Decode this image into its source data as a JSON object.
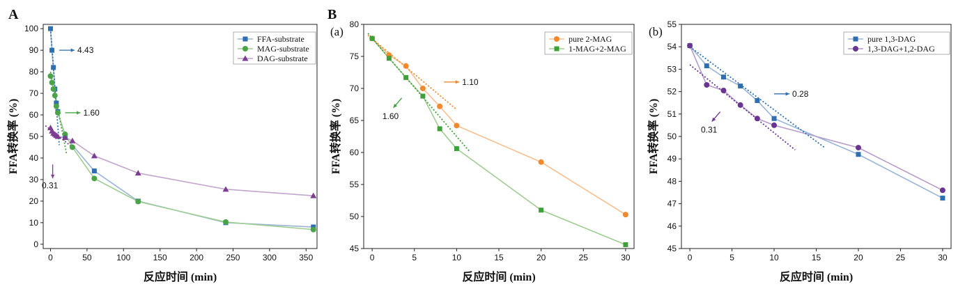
{
  "chart_data": [
    {
      "panel": "A",
      "type": "line",
      "ylabel": "FFA转换率 (%)",
      "xlabel": "反应时间 (min)",
      "xlim": [
        -10,
        365
      ],
      "ylim": [
        -2,
        102
      ],
      "xticks": [
        0,
        50,
        100,
        150,
        200,
        250,
        300,
        350
      ],
      "yticks": [
        0,
        10,
        20,
        30,
        40,
        50,
        60,
        70,
        80,
        90,
        100
      ],
      "legend_position": "top-right",
      "series": [
        {
          "name": "FFA-substrate",
          "color": "#2f6fb0",
          "line_color": "#9ab4d6",
          "marker": "square",
          "x": [
            0,
            2,
            4,
            6,
            8,
            10,
            20,
            60,
            120,
            240,
            360
          ],
          "y": [
            100,
            90,
            82,
            72,
            65.5,
            61.5,
            50,
            34,
            20,
            10,
            8
          ]
        },
        {
          "name": "MAG-substrate",
          "color": "#4aa447",
          "line_color": "#9fcd93",
          "marker": "circle",
          "x": [
            0,
            2,
            4,
            6,
            8,
            10,
            20,
            30,
            60,
            120,
            240,
            360
          ],
          "y": [
            78,
            75,
            72,
            69,
            64,
            61,
            51,
            45,
            30.5,
            19.8,
            10.3,
            6.8
          ]
        },
        {
          "name": "DAG-substrate",
          "color": "#7b3e91",
          "line_color": "#c2a4cc",
          "marker": "triangle",
          "x": [
            0,
            2,
            4,
            6,
            8,
            10,
            20,
            30,
            60,
            120,
            240,
            360
          ],
          "y": [
            54,
            52.5,
            51.5,
            51,
            50.5,
            50,
            49.5,
            48,
            41,
            33,
            25.5,
            22.5
          ]
        }
      ],
      "fit_lines": [
        {
          "color": "#2f6fb0",
          "x": [
            0,
            12
          ],
          "y": [
            100,
            46
          ]
        },
        {
          "color": "#4aa447",
          "x": [
            0,
            22
          ],
          "y": [
            80,
            42
          ]
        },
        {
          "color": "#7b3e91",
          "x": [
            -7,
            30
          ],
          "y": [
            55,
            45
          ]
        }
      ],
      "annotations": [
        {
          "text": "4.43",
          "color": "#2f6fb0",
          "x": 12,
          "y": 90,
          "dir": "right"
        },
        {
          "text": "1.60",
          "color": "#4aa447",
          "x": 20,
          "y": 61,
          "dir": "right"
        },
        {
          "text": "0.31",
          "color": "#7b3e91",
          "x": 3,
          "y": 37,
          "dir": "down"
        }
      ]
    },
    {
      "panel": "B",
      "subpanel": "(a)",
      "type": "line",
      "ylabel": "FFA转换率 (%)",
      "xlabel": "反应时间 (min)",
      "xlim": [
        -1,
        31
      ],
      "ylim": [
        45,
        80
      ],
      "xticks": [
        0,
        5,
        10,
        15,
        20,
        25,
        30
      ],
      "yticks": [
        45,
        50,
        55,
        60,
        65,
        70,
        75,
        80
      ],
      "legend_position": "top-right",
      "series": [
        {
          "name": "pure 2-MAG",
          "color": "#f08a2c",
          "line_color": "#f6bf8f",
          "marker": "circle",
          "x": [
            0,
            2,
            4,
            6,
            8,
            10,
            20,
            30
          ],
          "y": [
            77.8,
            75.2,
            73.5,
            70,
            67.2,
            64.2,
            58.5,
            50.3
          ]
        },
        {
          "name": "1-MAG+2-MAG",
          "color": "#3fa03a",
          "line_color": "#9fcd93",
          "marker": "square",
          "x": [
            0,
            2,
            4,
            6,
            8,
            10,
            20,
            30
          ],
          "y": [
            77.8,
            74.7,
            71.7,
            68.8,
            63.7,
            60.6,
            51,
            45.6
          ]
        }
      ],
      "fit_lines": [
        {
          "color": "#f08a2c",
          "x": [
            -0.5,
            10
          ],
          "y": [
            78.3,
            66.7
          ]
        },
        {
          "color": "#3fa03a",
          "x": [
            -0.5,
            11.5
          ],
          "y": [
            78.6,
            60.2
          ]
        }
      ],
      "annotations": [
        {
          "text": "1.10",
          "color": "#f08a2c",
          "x": 8.5,
          "y": 71,
          "dir": "right"
        },
        {
          "text": "1.60",
          "color": "#3fa03a",
          "x": 3.5,
          "y": 68.5,
          "dir": "down-left"
        }
      ]
    },
    {
      "panel": "",
      "subpanel": "(b)",
      "type": "line",
      "ylabel": "FFA转换率 (%)",
      "xlabel": "反应时间 (min)",
      "xlim": [
        -1,
        31
      ],
      "ylim": [
        45,
        55
      ],
      "xticks": [
        0,
        5,
        10,
        15,
        20,
        25,
        30
      ],
      "yticks": [
        45,
        46,
        47,
        48,
        49,
        50,
        51,
        52,
        53,
        54,
        55
      ],
      "legend_position": "top-right",
      "series": [
        {
          "name": "pure 1,3-DAG",
          "color": "#2f6fb0",
          "line_color": "#9ab4d6",
          "marker": "square",
          "x": [
            0,
            2,
            4,
            6,
            8,
            10,
            20,
            30
          ],
          "y": [
            54.05,
            53.15,
            52.65,
            52.25,
            51.6,
            50.8,
            49.2,
            47.25
          ]
        },
        {
          "name": "1,3-DAG+1,2-DAG",
          "color": "#6a3590",
          "line_color": "#b69ccb",
          "marker": "circle",
          "x": [
            0,
            2,
            4,
            6,
            8,
            10,
            20,
            30
          ],
          "y": [
            54.05,
            52.3,
            52.05,
            51.4,
            50.8,
            50.5,
            49.5,
            47.6
          ]
        }
      ],
      "fit_lines": [
        {
          "color": "#2f6fb0",
          "x": [
            0,
            16
          ],
          "y": [
            54,
            49.5
          ]
        },
        {
          "color": "#6a3590",
          "x": [
            0,
            12.5
          ],
          "y": [
            53.2,
            49.4
          ]
        }
      ],
      "annotations": [
        {
          "text": "0.28",
          "color": "#2f6fb0",
          "x": 10,
          "y": 51.9,
          "dir": "right"
        },
        {
          "text": "0.31",
          "color": "#6a3590",
          "x": 3.6,
          "y": 51.1,
          "dir": "down-left"
        }
      ]
    }
  ]
}
